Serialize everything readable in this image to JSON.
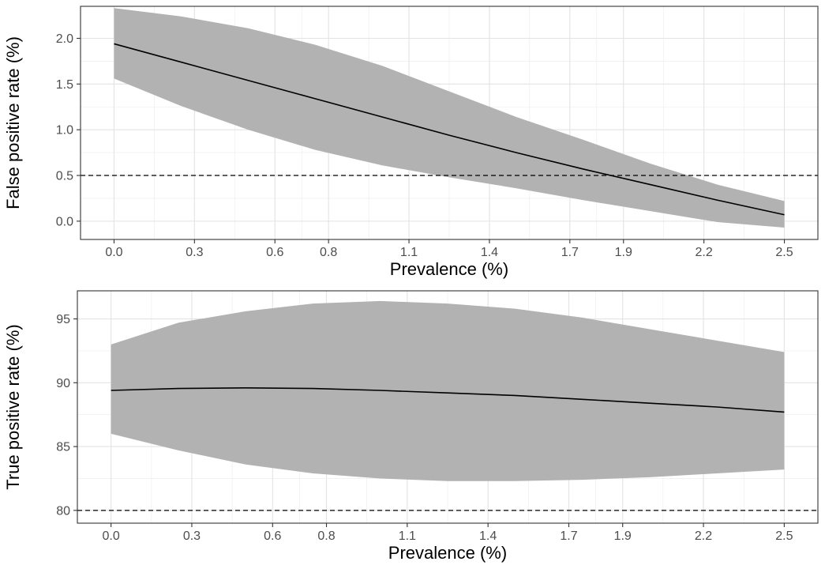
{
  "chart_data": [
    {
      "type": "line",
      "xlabel": "Prevalence (%)",
      "ylabel": "False positive rate (%)",
      "xlim": [
        -0.125,
        2.625
      ],
      "ylim": [
        -0.2,
        2.35
      ],
      "xticks": [
        0.0,
        0.3,
        0.6,
        0.8,
        1.1,
        1.4,
        1.7,
        1.9,
        2.2,
        2.5
      ],
      "xtick_labels": [
        "0.0",
        "0.3",
        "0.6",
        "0.8",
        "1.1",
        "1.4",
        "1.7",
        "1.9",
        "2.2",
        "2.5"
      ],
      "yticks": [
        0.0,
        0.5,
        1.0,
        1.5,
        2.0
      ],
      "ytick_labels": [
        "0.0",
        "0.5",
        "1.0",
        "1.5",
        "2.0"
      ],
      "grid": true,
      "reference_line": {
        "y": 0.5,
        "style": "dashed"
      },
      "x": [
        0.0,
        0.25,
        0.5,
        0.75,
        1.0,
        1.25,
        1.5,
        1.75,
        2.0,
        2.25,
        2.5
      ],
      "series": [
        {
          "values": [
            1.94,
            1.74,
            1.54,
            1.34,
            1.14,
            0.94,
            0.75,
            0.57,
            0.4,
            0.23,
            0.07
          ],
          "lower": [
            1.56,
            1.26,
            1.0,
            0.78,
            0.61,
            0.48,
            0.36,
            0.23,
            0.11,
            -0.01,
            -0.07
          ],
          "upper": [
            2.33,
            2.24,
            2.11,
            1.93,
            1.7,
            1.42,
            1.14,
            0.89,
            0.63,
            0.4,
            0.22
          ],
          "line_color": "#000000",
          "band_color": "#b2b2b2"
        }
      ]
    },
    {
      "type": "line",
      "xlabel": "Prevalence (%)",
      "ylabel": "True positive rate (%)",
      "xlim": [
        -0.125,
        2.625
      ],
      "ylim": [
        79.0,
        97.2
      ],
      "xticks": [
        0.0,
        0.3,
        0.6,
        0.8,
        1.1,
        1.4,
        1.7,
        1.9,
        2.2,
        2.5
      ],
      "xtick_labels": [
        "0.0",
        "0.3",
        "0.6",
        "0.8",
        "1.1",
        "1.4",
        "1.7",
        "1.9",
        "2.2",
        "2.5"
      ],
      "yticks": [
        80,
        85,
        90,
        95
      ],
      "ytick_labels": [
        "80",
        "85",
        "90",
        "95"
      ],
      "grid": true,
      "reference_line": {
        "y": 80,
        "style": "dashed"
      },
      "x": [
        0.0,
        0.25,
        0.5,
        0.75,
        1.0,
        1.25,
        1.5,
        1.75,
        2.0,
        2.25,
        2.5
      ],
      "series": [
        {
          "values": [
            89.4,
            89.55,
            89.6,
            89.55,
            89.4,
            89.2,
            89.0,
            88.7,
            88.4,
            88.1,
            87.7
          ],
          "lower": [
            86.0,
            84.7,
            83.6,
            82.9,
            82.5,
            82.3,
            82.3,
            82.4,
            82.6,
            82.9,
            83.2
          ],
          "upper": [
            93.0,
            94.7,
            95.6,
            96.2,
            96.4,
            96.2,
            95.8,
            95.1,
            94.2,
            93.3,
            92.4
          ],
          "line_color": "#000000",
          "band_color": "#b2b2b2"
        }
      ]
    }
  ]
}
